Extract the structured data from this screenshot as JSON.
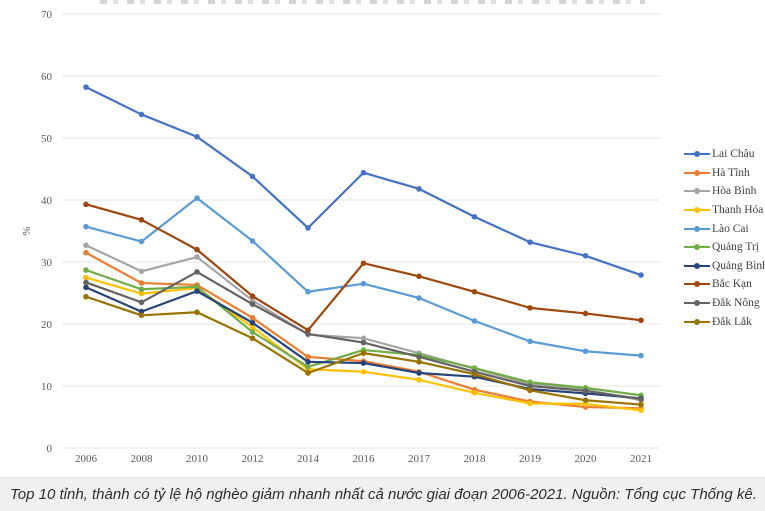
{
  "caption": {
    "text": "Top 10 tỉnh, thành có tỷ lệ hộ nghèo giảm nhanh nhất cả nước giai đoạn 2006-2021. Nguồn: Tổng cục Thống kê."
  },
  "chart_data": {
    "type": "line",
    "title": "",
    "xlabel": "",
    "ylabel": "%",
    "ylim": [
      0,
      70
    ],
    "ytick_step": 10,
    "grid": true,
    "legend_position": "right",
    "marker": "circle",
    "categories": [
      "2006",
      "2008",
      "2010",
      "2012",
      "2014",
      "2016",
      "2017",
      "2018",
      "2019",
      "2020",
      "2021"
    ],
    "series": [
      {
        "name": "Lai Châu",
        "color": "#4472C4",
        "values": [
          58.2,
          53.8,
          50.2,
          43.8,
          35.5,
          44.4,
          41.8,
          37.3,
          33.2,
          31.0,
          27.9
        ]
      },
      {
        "name": "Hà Tĩnh",
        "color": "#ED7D31",
        "values": [
          31.5,
          26.6,
          26.3,
          21.0,
          14.7,
          14.0,
          12.3,
          9.4,
          7.5,
          6.6,
          6.4
        ]
      },
      {
        "name": "Hòa Bình",
        "color": "#A5A5A5",
        "values": [
          32.7,
          28.5,
          30.8,
          23.8,
          18.3,
          17.7,
          15.3,
          12.8,
          10.3,
          9.4,
          7.7
        ]
      },
      {
        "name": "Thanh Hóa",
        "color": "#FFC000",
        "values": [
          27.5,
          24.9,
          25.8,
          19.5,
          12.7,
          12.3,
          11.0,
          8.9,
          7.2,
          7.1,
          6.1
        ]
      },
      {
        "name": "Lào Cai",
        "color": "#5B9BD5",
        "values": [
          35.7,
          33.3,
          40.3,
          33.4,
          25.2,
          26.5,
          24.2,
          20.5,
          17.2,
          15.6,
          14.9
        ]
      },
      {
        "name": "Quảng Trị",
        "color": "#70AD47",
        "values": [
          28.7,
          25.6,
          26.0,
          18.7,
          13.1,
          15.8,
          15.0,
          12.9,
          10.6,
          9.7,
          8.5
        ]
      },
      {
        "name": "Quảng Bình",
        "color": "#264478",
        "values": [
          25.9,
          22.0,
          25.3,
          20.2,
          13.9,
          13.7,
          12.1,
          11.5,
          9.5,
          8.8,
          8.0
        ]
      },
      {
        "name": "Bắc Kạn",
        "color": "#9E480E",
        "values": [
          39.3,
          36.8,
          32.0,
          24.5,
          19.0,
          29.8,
          27.7,
          25.2,
          22.6,
          21.7,
          20.6
        ]
      },
      {
        "name": "Đắk Nông",
        "color": "#636363",
        "values": [
          26.7,
          23.5,
          28.4,
          23.2,
          18.4,
          17.0,
          14.7,
          12.3,
          10.0,
          9.2,
          7.9
        ]
      },
      {
        "name": "Đắk Lắk",
        "color": "#997300",
        "values": [
          24.4,
          21.4,
          21.9,
          17.7,
          12.1,
          15.3,
          13.9,
          11.9,
          9.3,
          7.7,
          7.0
        ]
      }
    ]
  }
}
